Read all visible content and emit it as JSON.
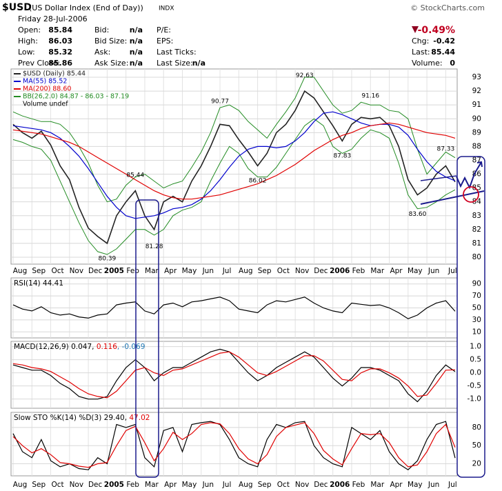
{
  "header": {
    "symbol": "$USD",
    "name": "(US Dollar Index (End of Day))",
    "exchange": "INDX",
    "source": "© StockCharts.com",
    "date": "Friday  28-Jul-2006",
    "rows": [
      [
        "Open:",
        85.84,
        "Bid:",
        "n/a",
        "P/E:"
      ],
      [
        "High:",
        86.03,
        "Bid Size:",
        "n/a",
        "EPS:"
      ],
      [
        "Low:",
        85.32,
        "Ask:",
        "n/a",
        "Last Ticks:"
      ],
      [
        "Prev Close:",
        85.86,
        "Ask Size:",
        "n/a",
        "Last Size:",
        "n/a"
      ]
    ],
    "change_pct": "-0.49%",
    "right_rows": [
      [
        "Chg:",
        -0.42
      ],
      [
        "Last:",
        85.44
      ],
      [
        "Volume:",
        0
      ]
    ]
  },
  "chart_data": [
    {
      "type": "line",
      "categories": [
        "Aug",
        null,
        "Sep",
        null,
        "Oct",
        null,
        "Nov",
        null,
        "Dec",
        null,
        "2005",
        null,
        "Feb",
        null,
        "Mar",
        null,
        "Apr",
        null,
        "May",
        null,
        "Jun",
        null,
        "Jul",
        null,
        "Aug",
        null,
        "Sep",
        null,
        "Oct",
        null,
        "Nov",
        null,
        "Dec",
        null,
        "2006",
        null,
        "Feb",
        null,
        "Mar",
        null,
        "Apr",
        null,
        "May",
        null,
        "Jun",
        null,
        "Jul",
        null
      ],
      "series": [
        {
          "name": "$USD (Daily) 85.44",
          "color": "#222222",
          "values": [
            89.6,
            89.0,
            88.6,
            89.1,
            88.1,
            86.6,
            85.6,
            83.6,
            82.1,
            81.5,
            81.0,
            83.0,
            84.0,
            84.8,
            83.0,
            82.0,
            84.0,
            84.4,
            84.0,
            85.5,
            86.6,
            88.0,
            89.6,
            89.5,
            88.5,
            87.6,
            86.6,
            87.5,
            89.0,
            89.6,
            90.6,
            92.0,
            91.5,
            90.5,
            89.5,
            88.4,
            89.6,
            90.1,
            90.0,
            90.1,
            89.5,
            88.0,
            85.6,
            84.5,
            85.0,
            86.0,
            86.6,
            85.44
          ]
        },
        {
          "name": "MA(55) 85.52",
          "color": "#0000cc",
          "values": [
            89.5,
            89.4,
            89.3,
            89.2,
            89.0,
            88.6,
            88.0,
            87.3,
            86.4,
            85.4,
            84.4,
            83.6,
            83.0,
            82.8,
            82.9,
            83.0,
            83.2,
            83.5,
            83.6,
            83.8,
            84.2,
            84.8,
            85.6,
            86.5,
            87.3,
            87.8,
            88.0,
            88.0,
            87.9,
            88.0,
            88.4,
            89.0,
            89.8,
            90.4,
            90.5,
            90.3,
            90.0,
            89.7,
            89.5,
            89.6,
            89.6,
            89.4,
            88.8,
            87.8,
            86.9,
            86.2,
            85.8,
            85.52
          ]
        },
        {
          "name": "MA(200) 88.60",
          "color": "#e00000",
          "values": [
            89.2,
            89.1,
            89.0,
            88.9,
            88.7,
            88.5,
            88.3,
            88.0,
            87.6,
            87.2,
            86.8,
            86.4,
            86.0,
            85.6,
            85.2,
            84.8,
            84.5,
            84.3,
            84.2,
            84.2,
            84.3,
            84.4,
            84.5,
            84.7,
            84.9,
            85.1,
            85.3,
            85.6,
            85.9,
            86.3,
            86.7,
            87.2,
            87.7,
            88.1,
            88.5,
            88.8,
            89.0,
            89.3,
            89.5,
            89.6,
            89.7,
            89.6,
            89.4,
            89.2,
            89.0,
            88.9,
            88.8,
            88.6
          ]
        }
      ],
      "bands": {
        "name": "BB(26,2.0) 84.87 - 86.03 - 87.19",
        "color": "#228b22",
        "upper": [
          90.5,
          90.2,
          90.0,
          89.8,
          89.8,
          89.6,
          89.0,
          88.0,
          86.8,
          85.2,
          84.0,
          84.2,
          85.2,
          85.8,
          86.0,
          85.5,
          85.0,
          85.3,
          85.5,
          86.5,
          87.6,
          89.0,
          90.8,
          91.0,
          90.6,
          89.8,
          89.2,
          88.6,
          89.6,
          90.5,
          91.5,
          93.0,
          93.0,
          92.0,
          91.0,
          90.4,
          90.6,
          91.2,
          91.0,
          91.0,
          90.6,
          90.5,
          90.0,
          87.8,
          86.0,
          86.8,
          87.6,
          87.19
        ],
        "lower": [
          88.5,
          88.3,
          88.0,
          87.8,
          87.0,
          85.5,
          84.0,
          82.5,
          81.2,
          80.4,
          80.2,
          80.6,
          81.3,
          82.0,
          82.0,
          81.6,
          82.0,
          83.0,
          83.4,
          83.6,
          84.0,
          85.5,
          86.8,
          88.0,
          87.5,
          86.4,
          85.8,
          85.8,
          86.5,
          87.5,
          88.5,
          89.5,
          90.0,
          89.5,
          88.0,
          87.5,
          87.8,
          88.6,
          89.2,
          89.0,
          88.6,
          86.8,
          84.5,
          83.5,
          83.6,
          84.0,
          84.5,
          84.87
        ]
      },
      "volume_label": "Volume undef",
      "annotations": [
        85.44,
        81.28,
        80.39,
        90.77,
        86.02,
        92.63,
        87.83,
        91.16,
        87.33,
        {
          "value": 83.6,
          "label": "83.60"
        }
      ],
      "ylim": [
        79.5,
        93.6
      ],
      "yticks": [
        80,
        81,
        82,
        83,
        84,
        85,
        86,
        87,
        88,
        89,
        90,
        91,
        92,
        93
      ],
      "grid": true
    },
    {
      "type": "line",
      "title": [
        {
          "text": "RSI(14) 44.41",
          "color": "#000000"
        }
      ],
      "series": [
        {
          "color": "#000000",
          "values": [
            55,
            48,
            45,
            52,
            42,
            38,
            40,
            35,
            33,
            38,
            40,
            55,
            58,
            60,
            45,
            40,
            55,
            58,
            52,
            60,
            62,
            65,
            68,
            62,
            48,
            45,
            42,
            55,
            62,
            60,
            64,
            68,
            58,
            50,
            45,
            42,
            58,
            56,
            54,
            55,
            50,
            42,
            32,
            38,
            50,
            58,
            62,
            44.41
          ]
        }
      ],
      "ylim": [
        0,
        100
      ],
      "yticks": [
        10,
        30,
        50,
        70,
        90
      ],
      "grid": true
    },
    {
      "type": "line",
      "title": [
        {
          "text": "MACD(12,26,9) 0.047, ",
          "color": "#000000"
        },
        {
          "text": "0.116",
          "color": "#e00000"
        },
        {
          "text": ", -0.069",
          "color": "#1f77b4"
        }
      ],
      "series": [
        {
          "color": "#000000",
          "values": [
            0.3,
            0.2,
            0.1,
            0.1,
            -0.1,
            -0.4,
            -0.6,
            -0.9,
            -1.0,
            -1.0,
            -0.9,
            -0.3,
            0.2,
            0.5,
            0.2,
            -0.3,
            0.0,
            0.2,
            0.2,
            0.4,
            0.6,
            0.8,
            0.9,
            0.8,
            0.4,
            0.0,
            -0.3,
            -0.1,
            0.2,
            0.4,
            0.6,
            0.8,
            0.6,
            0.2,
            -0.2,
            -0.5,
            -0.2,
            0.2,
            0.2,
            0.1,
            -0.1,
            -0.3,
            -0.8,
            -1.1,
            -0.7,
            -0.1,
            0.3,
            0.047
          ]
        },
        {
          "color": "#e00000",
          "values": [
            0.35,
            0.3,
            0.2,
            0.15,
            0.05,
            -0.15,
            -0.35,
            -0.6,
            -0.8,
            -0.9,
            -0.95,
            -0.7,
            -0.3,
            0.1,
            0.2,
            0.0,
            -0.1,
            0.1,
            0.15,
            0.3,
            0.45,
            0.6,
            0.75,
            0.8,
            0.6,
            0.3,
            0.0,
            -0.1,
            0.05,
            0.25,
            0.45,
            0.65,
            0.65,
            0.45,
            0.1,
            -0.25,
            -0.3,
            0.0,
            0.15,
            0.15,
            0.0,
            -0.2,
            -0.5,
            -0.9,
            -0.85,
            -0.4,
            0.1,
            0.116
          ]
        }
      ],
      "ylim": [
        -1.35,
        1.2
      ],
      "yticks": [
        {
          "value": -1,
          "label": "-1.0"
        },
        -0.5,
        {
          "value": 0,
          "label": "0.0"
        },
        0.5,
        {
          "value": 1,
          "label": "1.0"
        }
      ],
      "grid": true
    },
    {
      "type": "line",
      "title": [
        {
          "text": "Slow STO %K(14) %D(3) 29.40, ",
          "color": "#000000"
        },
        {
          "text": "47.02",
          "color": "#e00000"
        }
      ],
      "series": [
        {
          "color": "#000000",
          "values": [
            70,
            40,
            30,
            60,
            25,
            15,
            20,
            12,
            10,
            30,
            20,
            85,
            80,
            85,
            30,
            15,
            75,
            80,
            40,
            85,
            88,
            90,
            85,
            60,
            30,
            20,
            15,
            60,
            85,
            80,
            88,
            90,
            50,
            30,
            20,
            15,
            80,
            70,
            60,
            75,
            40,
            20,
            10,
            25,
            60,
            85,
            90,
            29.4
          ]
        },
        {
          "color": "#e00000",
          "values": [
            65,
            50,
            38,
            45,
            35,
            22,
            20,
            16,
            14,
            20,
            22,
            50,
            75,
            82,
            55,
            25,
            45,
            72,
            60,
            70,
            85,
            88,
            86,
            70,
            45,
            28,
            20,
            35,
            65,
            80,
            84,
            88,
            70,
            42,
            28,
            18,
            45,
            70,
            68,
            70,
            55,
            30,
            15,
            18,
            40,
            70,
            85,
            47.02
          ]
        }
      ],
      "ylim": [
        0,
        105
      ],
      "yticks": [
        20,
        50,
        80
      ],
      "grid": true
    }
  ]
}
